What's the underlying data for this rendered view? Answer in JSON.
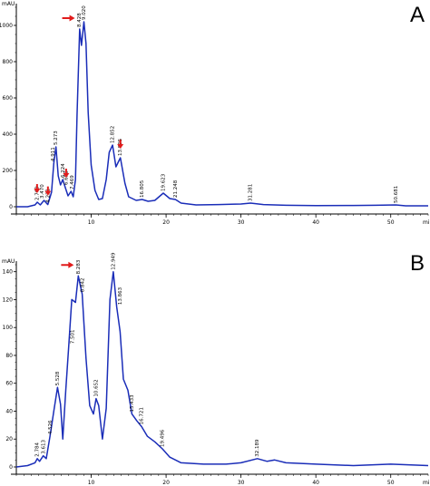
{
  "chart_data": [
    {
      "type": "line",
      "panel_label": "A",
      "ylabel": "mAU",
      "xlabel_fragment": "mi",
      "xlim": [
        0,
        55
      ],
      "ylim": [
        0,
        1100
      ],
      "x_ticks": [
        "10",
        "20",
        "30",
        "40",
        "50"
      ],
      "y_ticks": [
        "0",
        "200",
        "400",
        "600",
        "800",
        "1000"
      ],
      "series": [
        {
          "x": [
            0,
            1.5,
            2.5,
            2.8,
            3.2,
            3.7,
            4.2,
            4.7,
            5.0,
            5.3,
            5.6,
            5.9,
            6.2,
            6.5,
            6.9,
            7.3,
            7.6,
            7.9,
            8.1,
            8.45,
            8.7,
            9.02,
            9.3,
            9.6,
            10.0,
            10.5,
            11.0,
            11.5,
            12.0,
            12.4,
            12.85,
            13.3,
            13.9,
            14.5,
            15.0,
            16.0,
            16.8,
            17.6,
            18.5,
            19.62,
            20.5,
            21.25,
            22.0,
            24.0,
            27.0,
            30.0,
            31.28,
            33.0,
            36.0,
            40.0,
            45.0,
            48.0,
            50.68,
            52.0,
            55.0
          ],
          "y": [
            0,
            0,
            10,
            25,
            10,
            35,
            12,
            80,
            240,
            330,
            170,
            120,
            150,
            110,
            60,
            85,
            55,
            150,
            500,
            980,
            890,
            1020,
            900,
            520,
            230,
            90,
            40,
            45,
            150,
            300,
            340,
            220,
            270,
            130,
            55,
            35,
            40,
            30,
            35,
            75,
            45,
            40,
            20,
            10,
            12,
            15,
            20,
            12,
            8,
            6,
            7,
            8,
            10,
            5,
            5
          ]
        }
      ],
      "peak_labels": [
        {
          "x": 2.769,
          "y": 25,
          "text": "2.769"
        },
        {
          "x": 3.47,
          "y": 35,
          "text": "3.470"
        },
        {
          "x": 4.221,
          "y": 12,
          "text": "4.221"
        },
        {
          "x": 4.911,
          "y": 240,
          "text": "4.911"
        },
        {
          "x": 5.273,
          "y": 330,
          "text": "5.273"
        },
        {
          "x": 6.224,
          "y": 150,
          "text": "6.224"
        },
        {
          "x": 6.651,
          "y": 110,
          "text": "6.651"
        },
        {
          "x": 7.469,
          "y": 85,
          "text": "7.469"
        },
        {
          "x": 8.428,
          "y": 980,
          "text": "8.428"
        },
        {
          "x": 9.02,
          "y": 1020,
          "text": "9.020"
        },
        {
          "x": 12.852,
          "y": 340,
          "text": "12.852"
        },
        {
          "x": 13.895,
          "y": 270,
          "text": "13.895"
        },
        {
          "x": 16.805,
          "y": 40,
          "text": "16.805"
        },
        {
          "x": 19.623,
          "y": 75,
          "text": "19.623"
        },
        {
          "x": 21.248,
          "y": 40,
          "text": "21.248"
        },
        {
          "x": 31.281,
          "y": 20,
          "text": "31.281"
        },
        {
          "x": 50.681,
          "y": 10,
          "text": "50.681"
        }
      ],
      "arrows": [
        {
          "x": 2.769,
          "y": 25,
          "dir": "down"
        },
        {
          "x": 4.221,
          "y": 12,
          "dir": "down"
        },
        {
          "x": 6.651,
          "y": 110,
          "dir": "down"
        },
        {
          "x": 8.428,
          "y": 980,
          "dir": "right"
        },
        {
          "x": 13.895,
          "y": 270,
          "dir": "down"
        }
      ],
      "accent_color": "#e11b1b",
      "line_color": "#1a2db8"
    },
    {
      "type": "line",
      "panel_label": "B",
      "ylabel": "mAU",
      "xlabel_fragment": "mi",
      "xlim": [
        0,
        55
      ],
      "ylim": [
        0,
        145
      ],
      "x_ticks": [
        "10",
        "20",
        "30",
        "40",
        "50"
      ],
      "y_ticks": [
        "0",
        "20",
        "40",
        "60",
        "80",
        "100",
        "120",
        "140"
      ],
      "series": [
        {
          "x": [
            0,
            1.5,
            2.5,
            2.8,
            3.1,
            3.6,
            4.0,
            4.5,
            5.0,
            5.5,
            5.9,
            6.2,
            6.6,
            7.0,
            7.4,
            7.9,
            8.28,
            8.8,
            9.3,
            9.8,
            10.3,
            10.65,
            11.0,
            11.5,
            12.0,
            12.5,
            12.95,
            13.4,
            13.86,
            14.3,
            14.9,
            15.43,
            16.1,
            16.72,
            17.5,
            18.5,
            19.5,
            20.5,
            22.0,
            25.0,
            28.0,
            30.0,
            32.19,
            33.5,
            34.5,
            36.0,
            40.0,
            45.0,
            50.0,
            55.0
          ],
          "y": [
            0,
            1,
            3,
            6,
            4,
            8,
            6,
            22,
            40,
            57,
            45,
            20,
            55,
            87,
            120,
            118,
            137,
            124,
            78,
            44,
            38,
            49,
            44,
            20,
            42,
            120,
            140,
            115,
            97,
            63,
            55,
            38,
            33,
            29,
            22,
            18,
            13,
            7,
            3,
            2,
            2,
            3,
            6,
            4,
            5,
            3,
            2,
            1,
            2,
            1
          ]
        }
      ],
      "peak_labels": [
        {
          "x": 2.784,
          "y": 6,
          "text": "2.784"
        },
        {
          "x": 3.613,
          "y": 8,
          "text": "3.613"
        },
        {
          "x": 4.526,
          "y": 22,
          "text": "4.526"
        },
        {
          "x": 5.528,
          "y": 57,
          "text": "5.528"
        },
        {
          "x": 7.501,
          "y": 87,
          "text": "7.501"
        },
        {
          "x": 8.283,
          "y": 137,
          "text": "8.283"
        },
        {
          "x": 8.842,
          "y": 124,
          "text": "8.842"
        },
        {
          "x": 10.652,
          "y": 49,
          "text": "10.652"
        },
        {
          "x": 12.949,
          "y": 140,
          "text": "12.949"
        },
        {
          "x": 13.863,
          "y": 115,
          "text": "13.863"
        },
        {
          "x": 15.433,
          "y": 38,
          "text": "15.433"
        },
        {
          "x": 16.721,
          "y": 29,
          "text": "16.721"
        },
        {
          "x": 19.496,
          "y": 13,
          "text": "19.496"
        },
        {
          "x": 32.189,
          "y": 6,
          "text": "32.189"
        }
      ],
      "arrows": [
        {
          "x": 8.283,
          "y": 137,
          "dir": "right"
        }
      ],
      "accent_color": "#e11b1b",
      "line_color": "#1a2db8"
    }
  ]
}
